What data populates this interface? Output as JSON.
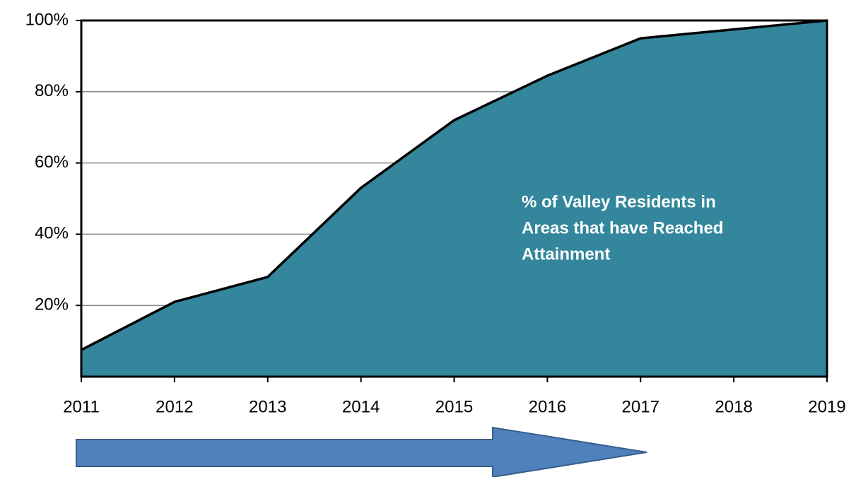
{
  "chart_data": {
    "type": "area",
    "x": [
      2011,
      2012,
      2013,
      2014,
      2015,
      2016,
      2017,
      2018,
      2019
    ],
    "xlim": [
      2011,
      2019
    ],
    "xticks": [
      2011,
      2012,
      2013,
      2014,
      2015,
      2016,
      2017,
      2018,
      2019
    ],
    "series": [
      {
        "color": "#33869c",
        "values": [
          7.5,
          21,
          28,
          53,
          72,
          84.5,
          95,
          97.5,
          100
        ]
      }
    ],
    "ylim": [
      0,
      100
    ],
    "yticks": [
      {
        "value": 20,
        "label": "20%"
      },
      {
        "value": 40,
        "label": "40%"
      },
      {
        "value": 60,
        "label": "60%"
      },
      {
        "value": 80,
        "label": "80%"
      },
      {
        "value": 100,
        "label": "100%"
      }
    ],
    "grid": true,
    "annotation": [
      "% of Valley Residents in",
      "Areas that have Reached",
      "Attainment"
    ]
  }
}
